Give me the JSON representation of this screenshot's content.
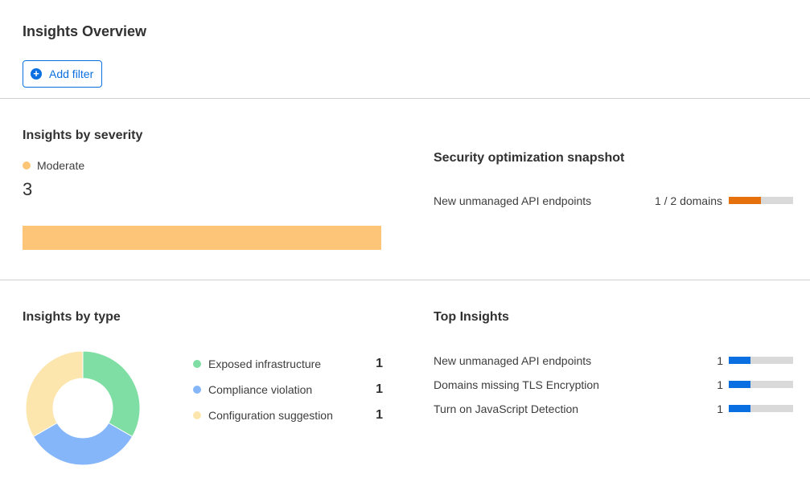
{
  "header": {
    "title": "Insights Overview",
    "add_filter_label": "Add filter",
    "add_filter_icon": "plus-circle-icon"
  },
  "colors": {
    "accent": "#0a6fe0",
    "moderate": "#fdc577",
    "orange": "#e5700c",
    "blue_bar": "#0a6fe0",
    "track": "#d9d9d9"
  },
  "severity": {
    "title": "Insights by severity",
    "legend_label": "Moderate",
    "count": "3",
    "moderate_fraction": 1.0
  },
  "snapshot": {
    "title": "Security optimization snapshot",
    "rows": [
      {
        "label": "New unmanaged API endpoints",
        "value": "1 / 2 domains",
        "fraction": 0.5
      }
    ]
  },
  "by_type": {
    "title": "Insights by type",
    "items": [
      {
        "label": "Exposed infrastructure",
        "value": "1",
        "color": "#7fdea3"
      },
      {
        "label": "Compliance violation",
        "value": "1",
        "color": "#86b6fa"
      },
      {
        "label": "Configuration suggestion",
        "value": "1",
        "color": "#fde6ae"
      }
    ]
  },
  "top": {
    "title": "Top Insights",
    "rows": [
      {
        "label": "New unmanaged API endpoints",
        "value": "1",
        "fraction": 0.333
      },
      {
        "label": "Domains missing TLS Encryption",
        "value": "1",
        "fraction": 0.333
      },
      {
        "label": "Turn on JavaScript Detection",
        "value": "1",
        "fraction": 0.333
      }
    ]
  }
}
